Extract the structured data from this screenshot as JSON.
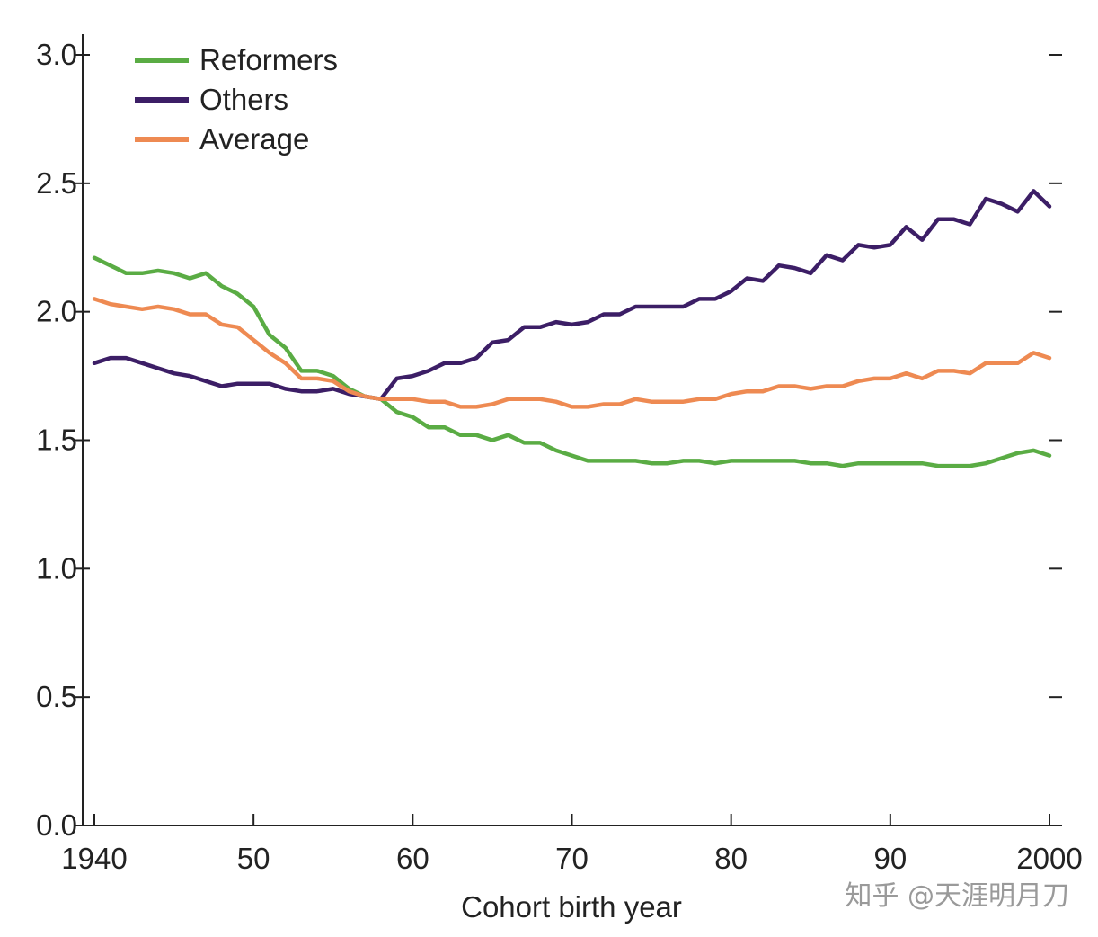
{
  "chart_data": {
    "type": "line",
    "xlabel": "Cohort birth year",
    "ylabel": "",
    "xlim": [
      1940,
      2000
    ],
    "ylim": [
      0,
      3
    ],
    "x_ticks": [
      1940,
      1950,
      1960,
      1970,
      1980,
      1990,
      2000
    ],
    "x_tick_labels": [
      "1940",
      "50",
      "60",
      "70",
      "80",
      "90",
      "2000"
    ],
    "y_ticks": [
      0,
      0.5,
      1,
      1.5,
      2,
      2.5,
      3
    ],
    "y_tick_labels": [
      "0.0",
      "0.5",
      "1.0",
      "1.5",
      "2.0",
      "2.5",
      "3.0"
    ],
    "legend_position": "top-left",
    "grid": false,
    "x": [
      1940,
      1941,
      1942,
      1943,
      1944,
      1945,
      1946,
      1947,
      1948,
      1949,
      1950,
      1951,
      1952,
      1953,
      1954,
      1955,
      1956,
      1957,
      1958,
      1959,
      1960,
      1961,
      1962,
      1963,
      1964,
      1965,
      1966,
      1967,
      1968,
      1969,
      1970,
      1971,
      1972,
      1973,
      1974,
      1975,
      1976,
      1977,
      1978,
      1979,
      1980,
      1981,
      1982,
      1983,
      1984,
      1985,
      1986,
      1987,
      1988,
      1989,
      1990,
      1991,
      1992,
      1993,
      1994,
      1995,
      1996,
      1997,
      1998,
      1999,
      2000
    ],
    "series": [
      {
        "name": "Reformers",
        "color": "#5aac44",
        "values": [
          2.21,
          2.18,
          2.15,
          2.15,
          2.16,
          2.15,
          2.13,
          2.15,
          2.1,
          2.07,
          2.02,
          1.91,
          1.86,
          1.77,
          1.77,
          1.75,
          1.7,
          1.67,
          1.66,
          1.61,
          1.59,
          1.55,
          1.55,
          1.52,
          1.52,
          1.5,
          1.52,
          1.49,
          1.49,
          1.46,
          1.44,
          1.42,
          1.42,
          1.42,
          1.42,
          1.41,
          1.41,
          1.42,
          1.42,
          1.41,
          1.42,
          1.42,
          1.42,
          1.42,
          1.42,
          1.41,
          1.41,
          1.4,
          1.41,
          1.41,
          1.41,
          1.41,
          1.41,
          1.4,
          1.4,
          1.4,
          1.41,
          1.43,
          1.45,
          1.46,
          1.44
        ]
      },
      {
        "name": "Others",
        "color": "#3c1e66",
        "values": [
          1.8,
          1.82,
          1.82,
          1.8,
          1.78,
          1.76,
          1.75,
          1.73,
          1.71,
          1.72,
          1.72,
          1.72,
          1.7,
          1.69,
          1.69,
          1.7,
          1.68,
          1.67,
          1.66,
          1.74,
          1.75,
          1.77,
          1.8,
          1.8,
          1.82,
          1.88,
          1.89,
          1.94,
          1.94,
          1.96,
          1.95,
          1.96,
          1.99,
          1.99,
          2.02,
          2.02,
          2.02,
          2.02,
          2.05,
          2.05,
          2.08,
          2.13,
          2.12,
          2.18,
          2.17,
          2.15,
          2.22,
          2.2,
          2.26,
          2.25,
          2.26,
          2.33,
          2.28,
          2.36,
          2.36,
          2.34,
          2.44,
          2.42,
          2.39,
          2.47,
          2.41
        ]
      },
      {
        "name": "Average",
        "color": "#ee8a52",
        "values": [
          2.05,
          2.03,
          2.02,
          2.01,
          2.02,
          2.01,
          1.99,
          1.99,
          1.95,
          1.94,
          1.89,
          1.84,
          1.8,
          1.74,
          1.74,
          1.73,
          1.69,
          1.67,
          1.66,
          1.66,
          1.66,
          1.65,
          1.65,
          1.63,
          1.63,
          1.64,
          1.66,
          1.66,
          1.66,
          1.65,
          1.63,
          1.63,
          1.64,
          1.64,
          1.66,
          1.65,
          1.65,
          1.65,
          1.66,
          1.66,
          1.68,
          1.69,
          1.69,
          1.71,
          1.71,
          1.7,
          1.71,
          1.71,
          1.73,
          1.74,
          1.74,
          1.76,
          1.74,
          1.77,
          1.77,
          1.76,
          1.8,
          1.8,
          1.8,
          1.84,
          1.82
        ]
      }
    ]
  },
  "watermark": {
    "text": "知乎 @天涯明月刀"
  }
}
